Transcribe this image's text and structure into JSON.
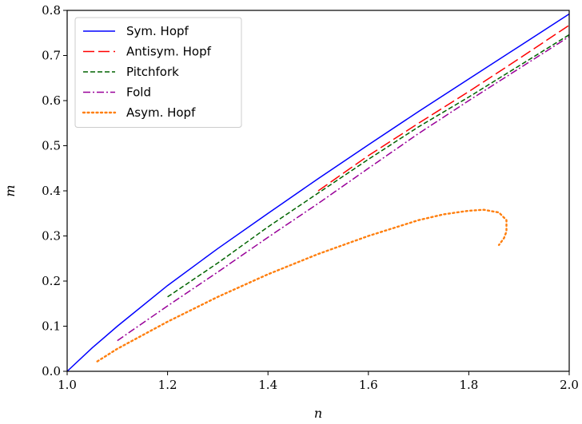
{
  "chart_data": {
    "type": "line",
    "xlabel": "n",
    "ylabel": "m",
    "xlim": [
      1.0,
      2.0
    ],
    "ylim": [
      0.0,
      0.8
    ],
    "xticks": [
      "1.0",
      "1.2",
      "1.4",
      "1.6",
      "1.8",
      "2.0"
    ],
    "yticks": [
      "0.0",
      "0.1",
      "0.2",
      "0.3",
      "0.4",
      "0.5",
      "0.6",
      "0.7",
      "0.8"
    ],
    "legend_position": "top-left",
    "grid": false,
    "series": [
      {
        "name": "Sym. Hopf",
        "color": "#0000ff",
        "style": "solid",
        "x": [
          1.0,
          1.05,
          1.1,
          1.2,
          1.3,
          1.4,
          1.5,
          1.6,
          1.7,
          1.8,
          1.9,
          2.0
        ],
        "y": [
          0.0,
          0.052,
          0.1,
          0.19,
          0.272,
          0.35,
          0.427,
          0.502,
          0.576,
          0.648,
          0.72,
          0.792
        ]
      },
      {
        "name": "Antisym. Hopf",
        "color": "#ff0000",
        "style": "dashed",
        "x": [
          1.5,
          1.6,
          1.7,
          1.8,
          1.9,
          2.0
        ],
        "y": [
          0.4,
          0.478,
          0.55,
          0.62,
          0.693,
          0.767
        ]
      },
      {
        "name": "Pitchfork",
        "color": "#006400",
        "style": "dashed-short",
        "x": [
          1.2,
          1.3,
          1.4,
          1.5,
          1.6,
          1.7,
          1.8,
          1.9,
          2.0
        ],
        "y": [
          0.165,
          0.24,
          0.32,
          0.395,
          0.47,
          0.542,
          0.608,
          0.677,
          0.746
        ]
      },
      {
        "name": "Fold",
        "color": "#990099",
        "style": "dashdot",
        "x": [
          1.1,
          1.2,
          1.3,
          1.4,
          1.5,
          1.6,
          1.7,
          1.8,
          1.9,
          2.0
        ],
        "y": [
          0.068,
          0.145,
          0.22,
          0.297,
          0.372,
          0.45,
          0.527,
          0.6,
          0.671,
          0.742
        ]
      },
      {
        "name": "Asym. Hopf",
        "color": "#ff7f0e",
        "style": "dotted",
        "x": [
          1.06,
          1.1,
          1.2,
          1.3,
          1.4,
          1.5,
          1.6,
          1.7,
          1.75,
          1.8,
          1.83,
          1.86,
          1.875,
          1.875,
          1.87,
          1.86
        ],
        "y": [
          0.022,
          0.05,
          0.11,
          0.165,
          0.215,
          0.26,
          0.3,
          0.335,
          0.348,
          0.356,
          0.358,
          0.352,
          0.335,
          0.31,
          0.295,
          0.28
        ]
      }
    ]
  }
}
